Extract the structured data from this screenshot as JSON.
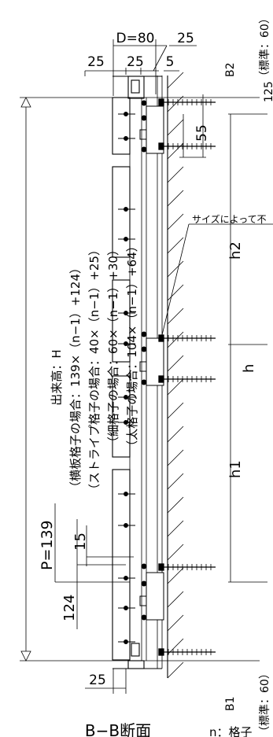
{
  "drawing": {
    "dim_d80": "D=80",
    "dim_25_top": "25",
    "dim_25_left": "25",
    "dim_25_mid": "25",
    "dim_5": "5",
    "dim_25_bottom": "25",
    "dim_55": "55",
    "dim_125": "125",
    "dim_p139": "P=139",
    "dim_15": "15",
    "dim_124": "124",
    "label_b2": "B2",
    "label_b2_std": "（標準：60）",
    "label_b1": "B1",
    "label_b1_std": "（標準：60）",
    "label_h1": "h1",
    "label_h2": "h2",
    "label_h": "h",
    "label_title": "出来高：H",
    "formula_1": "（横板格子の場合：139×（n−1）+124）",
    "formula_2": "（ストライプ格子の場合：40×（n−1）+25）",
    "formula_3": "（細格子の場合：60×（n−1）+30）",
    "formula_4": "（太格子の場合：104×（n−1）+64）",
    "note_size": "サイズによって不",
    "section_title": "B−B断面",
    "note_n": "n：格子"
  }
}
